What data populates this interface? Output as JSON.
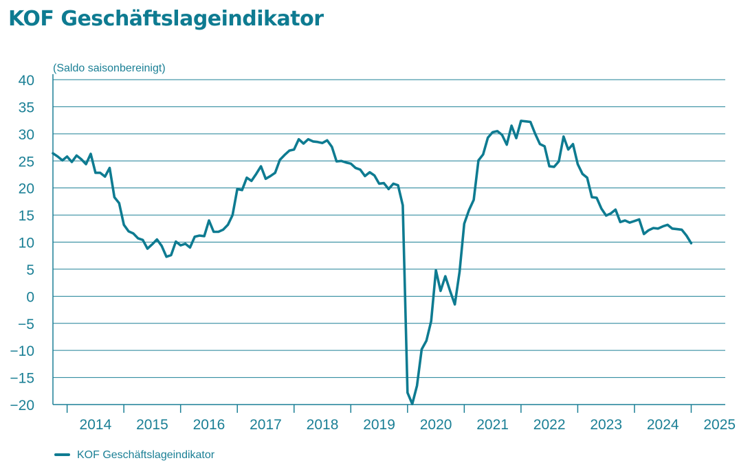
{
  "colors": {
    "accent": "#0e7b91"
  },
  "chart_data": {
    "type": "line",
    "title": "KOF Geschäftslageindikator",
    "ylabel": "(Saldo saisonbereinigt)",
    "xlabel": "",
    "ylim": [
      -20,
      40
    ],
    "yticks": [
      40,
      35,
      30,
      25,
      20,
      15,
      10,
      5,
      0,
      -5,
      -10,
      -15,
      -20
    ],
    "ytick_labels": [
      "40",
      "35",
      "30",
      "25",
      "20",
      "15",
      "10",
      "5",
      "0",
      "−5",
      "−10",
      "−15",
      "−20"
    ],
    "x_start": 2013.75,
    "x_end": 2025.6,
    "x_categories": [
      "2014",
      "2015",
      "2016",
      "2017",
      "2018",
      "2019",
      "2020",
      "2021",
      "2022",
      "2023",
      "2024",
      "2025"
    ],
    "grid": true,
    "legend": {
      "position": "bottom-left",
      "entries": [
        "KOF Geschäftslageindikator"
      ]
    },
    "series": [
      {
        "name": "KOF Geschäftslageindikator",
        "start": 2013.75,
        "step": 0.08333,
        "values": [
          26.4,
          25.8,
          25.1,
          25.8,
          24.8,
          26.0,
          25.3,
          24.4,
          26.3,
          22.8,
          22.8,
          22.1,
          23.7,
          18.3,
          17.2,
          13.2,
          12.0,
          11.6,
          10.7,
          10.4,
          8.8,
          9.6,
          10.5,
          9.3,
          7.3,
          7.6,
          10.1,
          9.4,
          9.7,
          9.0,
          11.0,
          11.2,
          11.1,
          14.0,
          11.9,
          11.9,
          12.3,
          13.2,
          15.0,
          19.8,
          19.6,
          21.9,
          21.3,
          22.6,
          24.0,
          21.7,
          22.2,
          22.8,
          25.2,
          26.1,
          26.9,
          27.1,
          29.0,
          28.2,
          29.0,
          28.6,
          28.5,
          28.3,
          28.8,
          27.6,
          24.9,
          25.0,
          24.7,
          24.5,
          23.7,
          23.4,
          22.2,
          22.9,
          22.3,
          20.8,
          20.9,
          19.8,
          20.8,
          20.5,
          16.8,
          -17.8,
          -19.9,
          -16.5,
          -9.8,
          -8.2,
          -4.6,
          4.8,
          1.0,
          3.7,
          1.0,
          -1.5,
          4.5,
          13.4,
          15.9,
          17.8,
          25.1,
          26.2,
          29.3,
          30.3,
          30.5,
          29.8,
          28.0,
          31.5,
          29.2,
          32.4,
          32.3,
          32.2,
          30.0,
          28.1,
          27.7,
          24.0,
          23.9,
          24.9,
          29.5,
          27.1,
          28.1,
          24.4,
          22.6,
          21.9,
          18.3,
          18.2,
          16.2,
          14.9,
          15.3,
          16.0,
          13.7,
          14.0,
          13.6,
          13.9,
          14.2,
          11.5,
          12.2,
          12.6,
          12.5,
          12.9,
          13.2,
          12.5,
          12.4,
          12.3,
          11.2,
          9.8
        ]
      }
    ]
  }
}
